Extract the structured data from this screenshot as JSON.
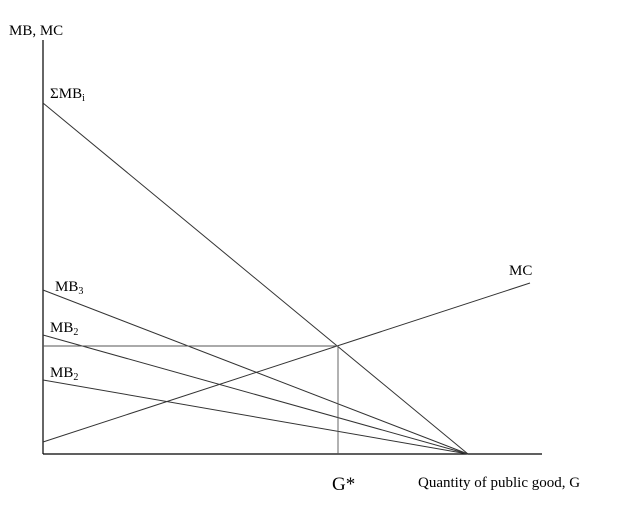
{
  "axes": {
    "y_label": "MB, MC",
    "x_label": "Quantity of public good, G"
  },
  "curves": {
    "sum_mb": {
      "base": "ΣMB",
      "sub": "i"
    },
    "mb3": {
      "base": "MB",
      "sub": "3"
    },
    "mb2_upper": {
      "base": "MB",
      "sub": "2"
    },
    "mb2_lower": {
      "base": "MB",
      "sub": "2"
    },
    "mc": {
      "label": "MC"
    }
  },
  "equilibrium": {
    "label": "G*"
  }
}
